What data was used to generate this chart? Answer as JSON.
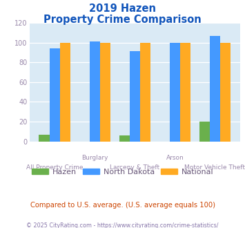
{
  "title_line1": "2019 Hazen",
  "title_line2": "Property Crime Comparison",
  "hazen": [
    7,
    0,
    6,
    0,
    20
  ],
  "north_dakota": [
    94,
    101,
    91,
    100,
    107
  ],
  "national": [
    100,
    100,
    100,
    100,
    100
  ],
  "hazen_color": "#6ab04c",
  "nd_color": "#4499ff",
  "national_color": "#ffaa22",
  "bg_color": "#daeaf5",
  "title_color": "#1155bb",
  "axis_label_color": "#9988aa",
  "legend_label_color": "#665577",
  "note_color": "#cc4400",
  "footer_color": "#8877aa",
  "ylim": [
    0,
    120
  ],
  "yticks": [
    0,
    20,
    40,
    60,
    80,
    100,
    120
  ],
  "note_text": "Compared to U.S. average. (U.S. average equals 100)",
  "footer_text": "© 2025 CityRating.com - https://www.cityrating.com/crime-statistics/"
}
